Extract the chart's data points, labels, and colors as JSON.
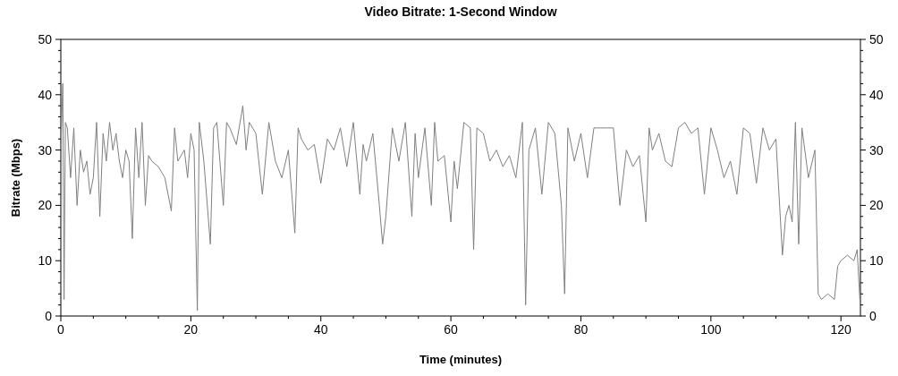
{
  "chart_data": {
    "type": "line",
    "title": "Video Bitrate: 1-Second Window",
    "xlabel": "Time (minutes)",
    "ylabel": "Bitrate (Mbps)",
    "xlim": [
      0,
      123
    ],
    "xticks": [
      0,
      {
        "value": 5,
        "label": null
      },
      {
        "value": 10,
        "label": null
      },
      {
        "value": 15,
        "label": null
      },
      20,
      {
        "value": 25,
        "label": null
      },
      {
        "value": 30,
        "label": null
      },
      {
        "value": 35,
        "label": null
      },
      40,
      {
        "value": 45,
        "label": null
      },
      {
        "value": 50,
        "label": null
      },
      {
        "value": 55,
        "label": null
      },
      60,
      {
        "value": 65,
        "label": null
      },
      {
        "value": 70,
        "label": null
      },
      {
        "value": 75,
        "label": null
      },
      80,
      {
        "value": 85,
        "label": null
      },
      {
        "value": 90,
        "label": null
      },
      {
        "value": 95,
        "label": null
      },
      100,
      {
        "value": 105,
        "label": null
      },
      {
        "value": 110,
        "label": null
      },
      {
        "value": 115,
        "label": null
      },
      120
    ],
    "ylim": [
      0,
      50
    ],
    "yticks": [
      0,
      {
        "value": 2,
        "label": null
      },
      {
        "value": 4,
        "label": null
      },
      {
        "value": 6,
        "label": null
      },
      {
        "value": 8,
        "label": null
      },
      10,
      {
        "value": 12,
        "label": null
      },
      {
        "value": 14,
        "label": null
      },
      {
        "value": 16,
        "label": null
      },
      {
        "value": 18,
        "label": null
      },
      20,
      {
        "value": 22,
        "label": null
      },
      {
        "value": 24,
        "label": null
      },
      {
        "value": 26,
        "label": null
      },
      {
        "value": 28,
        "label": null
      },
      30,
      {
        "value": 32,
        "label": null
      },
      {
        "value": 34,
        "label": null
      },
      {
        "value": 36,
        "label": null
      },
      {
        "value": 38,
        "label": null
      },
      40,
      {
        "value": 42,
        "label": null
      },
      {
        "value": 44,
        "label": null
      },
      {
        "value": 46,
        "label": null
      },
      {
        "value": 48,
        "label": null
      },
      50
    ],
    "y2lim": [
      0,
      50
    ],
    "y2ticks": [
      0,
      {
        "value": 2,
        "label": null
      },
      {
        "value": 4,
        "label": null
      },
      {
        "value": 6,
        "label": null
      },
      {
        "value": 8,
        "label": null
      },
      10,
      {
        "value": 12,
        "label": null
      },
      {
        "value": 14,
        "label": null
      },
      {
        "value": 16,
        "label": null
      },
      {
        "value": 18,
        "label": null
      },
      20,
      {
        "value": 22,
        "label": null
      },
      {
        "value": 24,
        "label": null
      },
      {
        "value": 26,
        "label": null
      },
      {
        "value": 28,
        "label": null
      },
      30,
      {
        "value": 32,
        "label": null
      },
      {
        "value": 34,
        "label": null
      },
      {
        "value": 36,
        "label": null
      },
      {
        "value": 38,
        "label": null
      },
      40,
      {
        "value": 42,
        "label": null
      },
      {
        "value": 44,
        "label": null
      },
      {
        "value": 46,
        "label": null
      },
      {
        "value": 48,
        "label": null
      },
      50
    ],
    "marker": "none",
    "line_style": "solid",
    "series": [
      {
        "color": "#808080",
        "x": [
          0,
          0.3,
          0.5,
          0.7,
          1,
          1.5,
          2,
          2.5,
          3,
          3.5,
          4,
          4.5,
          5,
          5.5,
          6,
          6.5,
          7,
          7.5,
          8,
          8.5,
          9,
          9.5,
          10,
          10.5,
          11,
          11.5,
          12,
          12.5,
          13,
          13.5,
          14,
          15,
          16,
          17,
          17.5,
          18,
          19,
          19.5,
          20,
          20.5,
          21,
          21.3,
          22,
          23,
          23.5,
          24,
          25,
          25.5,
          26,
          27,
          28,
          28.5,
          29,
          30,
          31,
          32,
          33,
          34,
          35,
          36,
          36.5,
          37,
          38,
          39,
          40,
          41,
          42,
          43,
          44,
          45,
          46,
          46.5,
          47,
          48,
          49,
          49.5,
          50,
          51,
          52,
          53,
          54,
          54.5,
          55,
          56,
          57,
          57.5,
          58,
          59,
          60,
          60.5,
          61,
          62,
          63,
          63.5,
          64,
          65,
          66,
          67,
          68,
          69,
          70,
          71,
          71.5,
          72,
          73,
          74,
          75,
          76,
          77,
          77.5,
          78,
          79,
          80,
          81,
          82,
          83,
          84,
          85,
          86,
          87,
          88,
          89,
          90,
          90.5,
          91,
          92,
          93,
          94,
          95,
          96,
          97,
          98,
          99,
          100,
          101,
          102,
          103,
          104,
          105,
          106,
          107,
          108,
          109,
          110,
          111,
          111.5,
          112,
          112.5,
          113,
          113.5,
          114,
          115,
          116,
          116.5,
          117,
          118,
          119,
          119.5,
          120,
          121,
          122,
          122.5,
          123
        ],
        "values": [
          30,
          42,
          3,
          35,
          34,
          25,
          34,
          20,
          30,
          26,
          28,
          22,
          25,
          35,
          18,
          33,
          28,
          35,
          30,
          33,
          28,
          25,
          30,
          28,
          14,
          34,
          25,
          35,
          20,
          29,
          28,
          27,
          25,
          19,
          34,
          28,
          30,
          25,
          33,
          30,
          1,
          35,
          28,
          13,
          34,
          35,
          20,
          35,
          34,
          31,
          38,
          30,
          35,
          33,
          22,
          35,
          28,
          25,
          30,
          15,
          34,
          32,
          30,
          31,
          24,
          32,
          30,
          34,
          27,
          35,
          22,
          31,
          28,
          33,
          20,
          13,
          18,
          34,
          28,
          35,
          18,
          33,
          25,
          34,
          20,
          35,
          28,
          29,
          17,
          28,
          23,
          35,
          34,
          12,
          34,
          33,
          28,
          30,
          27,
          29,
          25,
          35,
          2,
          30,
          34,
          22,
          35,
          33,
          20,
          4,
          34,
          28,
          33,
          25,
          34,
          34,
          34,
          34,
          20,
          30,
          27,
          29,
          17,
          34,
          30,
          33,
          28,
          27,
          34,
          35,
          33,
          34,
          22,
          34,
          30,
          25,
          28,
          22,
          34,
          33,
          24,
          34,
          30,
          32,
          11,
          18,
          20,
          17,
          35,
          13,
          34,
          25,
          30,
          4,
          3,
          4,
          3,
          9,
          10,
          11,
          10,
          12,
          1
        ]
      }
    ]
  }
}
